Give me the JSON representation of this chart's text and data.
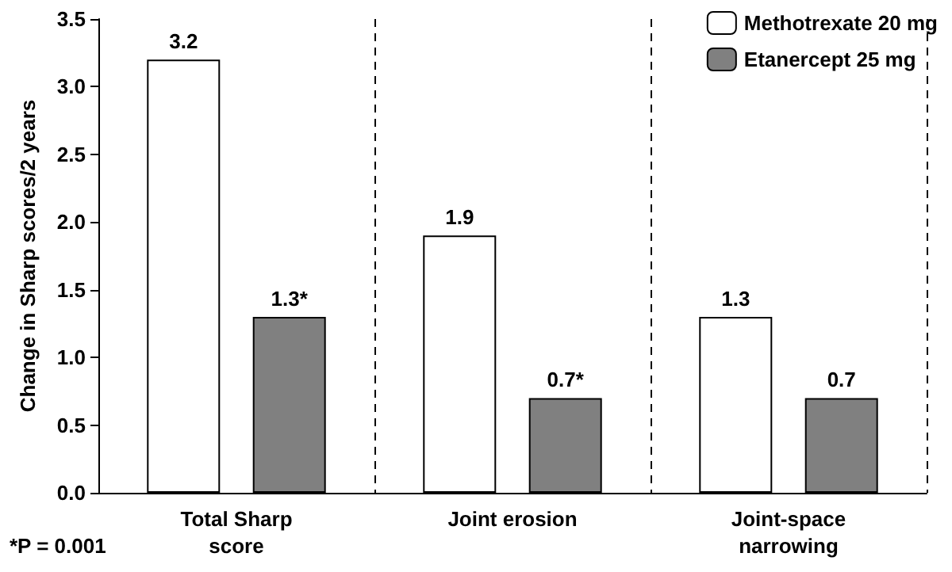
{
  "chart_data": {
    "type": "bar",
    "ylabel": "Change in Sharp scores/2 years",
    "categories": [
      "Total Sharp\nscore",
      "Joint erosion",
      "Joint-space\nnarrowing"
    ],
    "series": [
      {
        "name": "Methotrexate 20 mg",
        "color": "#ffffff",
        "values": [
          3.2,
          1.9,
          1.3
        ],
        "value_labels": [
          "3.2",
          "1.9",
          "1.3"
        ]
      },
      {
        "name": "Etanercept 25 mg",
        "color": "#808080",
        "values": [
          1.3,
          0.7,
          0.7
        ],
        "value_labels": [
          "1.3*",
          "0.7*",
          "0.7"
        ]
      }
    ],
    "ylim": [
      0,
      3.5
    ],
    "yticks": [
      {
        "value": 0,
        "label": "0.0"
      },
      {
        "value": 0.5,
        "label": "0.5"
      },
      {
        "value": 1,
        "label": "1.0"
      },
      {
        "value": 1.5,
        "label": "1.5"
      },
      {
        "value": 2,
        "label": "2.0"
      },
      {
        "value": 2.5,
        "label": "2.5"
      },
      {
        "value": 3,
        "label": "3.0"
      },
      {
        "value": 3.5,
        "label": "3.5"
      }
    ],
    "grid": "x",
    "legend": "top right",
    "annotations": [
      "*P = 0.001"
    ]
  }
}
